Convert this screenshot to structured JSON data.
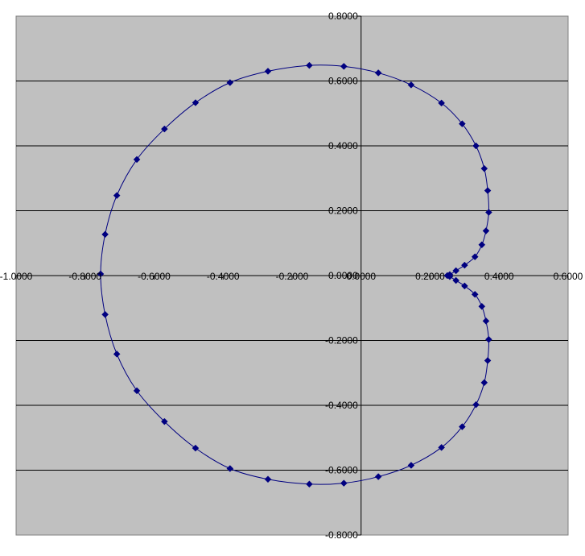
{
  "chart_data": {
    "type": "scatter",
    "title": "",
    "xlabel": "",
    "ylabel": "",
    "xlim": [
      -1.0,
      0.6
    ],
    "ylim": [
      -0.8,
      0.8
    ],
    "x_ticks": [
      -1.0,
      -0.8,
      -0.6,
      -0.4,
      -0.2,
      0.0,
      0.2,
      0.4,
      0.6
    ],
    "x_tick_labels": [
      "-1.0000",
      "-0.8000",
      "-0.6000",
      "-0.4000",
      "-0.2000",
      "0.0000",
      "0.2000",
      "0.4000",
      "0.6000"
    ],
    "y_ticks": [
      0.8,
      0.6,
      0.4,
      0.2,
      0.0,
      -0.2,
      -0.4,
      -0.6,
      -0.8
    ],
    "y_tick_labels": [
      "0.8000",
      "0.6000",
      "0.4000",
      "0.2000",
      "0.0000",
      "-0.2000",
      "-0.4000",
      "-0.6000",
      "-0.8000"
    ],
    "grid": "horizontal",
    "legend": "none",
    "colors": {
      "plot_area": "#c0c0c0",
      "series": "#000080",
      "gridline": "#000000"
    },
    "series": [
      {
        "marker": "diamond",
        "line": "smooth",
        "points": [
          [
            0.25,
            0.0
          ],
          [
            0.257,
            0.003
          ],
          [
            0.275,
            0.015
          ],
          [
            0.3,
            0.032
          ],
          [
            0.33,
            0.058
          ],
          [
            0.35,
            0.095
          ],
          [
            0.362,
            0.138
          ],
          [
            0.37,
            0.195
          ],
          [
            0.367,
            0.262
          ],
          [
            0.357,
            0.33
          ],
          [
            0.333,
            0.4
          ],
          [
            0.293,
            0.468
          ],
          [
            0.233,
            0.532
          ],
          [
            0.145,
            0.588
          ],
          [
            0.05,
            0.625
          ],
          [
            -0.05,
            0.645
          ],
          [
            -0.15,
            0.648
          ],
          [
            -0.27,
            0.63
          ],
          [
            -0.38,
            0.595
          ],
          [
            -0.48,
            0.533
          ],
          [
            -0.57,
            0.452
          ],
          [
            -0.65,
            0.358
          ],
          [
            -0.708,
            0.247
          ],
          [
            -0.742,
            0.127
          ],
          [
            -0.755,
            0.005
          ],
          [
            -0.742,
            -0.12
          ],
          [
            -0.708,
            -0.242
          ],
          [
            -0.65,
            -0.355
          ],
          [
            -0.57,
            -0.45
          ],
          [
            -0.48,
            -0.532
          ],
          [
            -0.38,
            -0.595
          ],
          [
            -0.27,
            -0.628
          ],
          [
            -0.15,
            -0.643
          ],
          [
            -0.05,
            -0.64
          ],
          [
            0.05,
            -0.62
          ],
          [
            0.145,
            -0.585
          ],
          [
            0.233,
            -0.53
          ],
          [
            0.293,
            -0.466
          ],
          [
            0.333,
            -0.398
          ],
          [
            0.357,
            -0.33
          ],
          [
            0.367,
            -0.262
          ],
          [
            0.37,
            -0.197
          ],
          [
            0.362,
            -0.14
          ],
          [
            0.35,
            -0.095
          ],
          [
            0.33,
            -0.058
          ],
          [
            0.3,
            -0.032
          ],
          [
            0.275,
            -0.015
          ],
          [
            0.257,
            -0.003
          ],
          [
            0.25,
            0.0
          ]
        ]
      }
    ]
  }
}
